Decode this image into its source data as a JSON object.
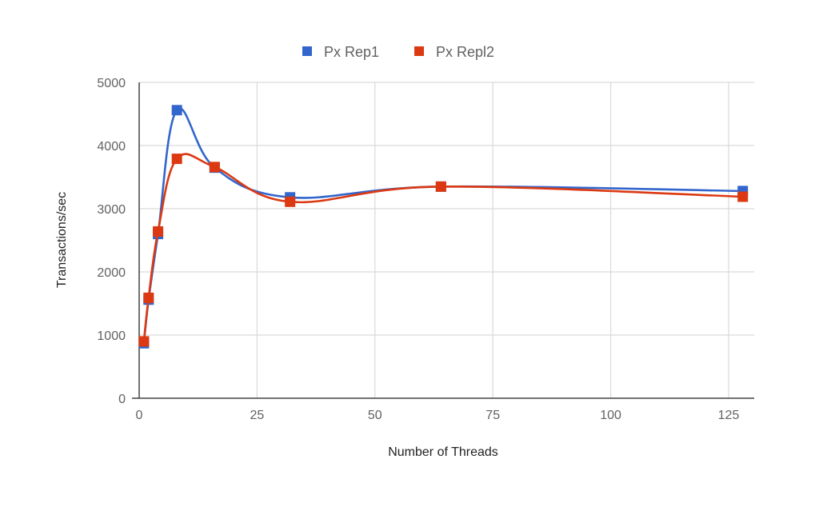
{
  "chart_data": {
    "type": "line",
    "title": "",
    "xlabel": "Number of Threads",
    "ylabel": "Transactions/sec",
    "xlim": [
      0,
      130
    ],
    "ylim": [
      0,
      5000
    ],
    "x_ticks": [
      0,
      25,
      50,
      75,
      100,
      125
    ],
    "y_ticks": [
      0,
      1000,
      2000,
      3000,
      4000,
      5000
    ],
    "grid": true,
    "legend_position": "top",
    "smooth": true,
    "x": [
      1,
      2,
      4,
      8,
      16,
      32,
      64,
      128
    ],
    "series": [
      {
        "name": "Px Rep1",
        "color": "#3366cc",
        "values": [
          870,
          1560,
          2600,
          4560,
          3650,
          3180,
          3350,
          3280
        ]
      },
      {
        "name": "Px Repl2",
        "color": "#dc3912",
        "values": [
          900,
          1590,
          2640,
          3790,
          3660,
          3110,
          3350,
          3190
        ]
      }
    ]
  }
}
